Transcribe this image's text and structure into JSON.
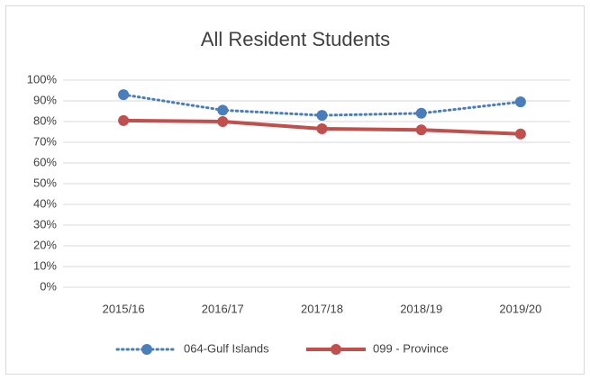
{
  "chart_data": {
    "type": "line",
    "title": "All Resident Students",
    "categories": [
      "2015/16",
      "2016/17",
      "2017/18",
      "2018/19",
      "2019/20"
    ],
    "series": [
      {
        "name": "064-Gulf Islands",
        "color": "#4a7ebb",
        "dash": "dotted",
        "values": [
          93,
          85.5,
          83,
          84,
          89.5
        ]
      },
      {
        "name": "099 - Province",
        "color": "#c0504d",
        "dash": "solid",
        "values": [
          80.5,
          80,
          76.5,
          76,
          74
        ]
      }
    ],
    "ylim": [
      0,
      100
    ],
    "yticks": [
      {
        "value": 0,
        "label": "0%"
      },
      {
        "value": 10,
        "label": "10%"
      },
      {
        "value": 20,
        "label": "20%"
      },
      {
        "value": 30,
        "label": "30%"
      },
      {
        "value": 40,
        "label": "40%"
      },
      {
        "value": 50,
        "label": "50%"
      },
      {
        "value": 60,
        "label": "60%"
      },
      {
        "value": 70,
        "label": "70%"
      },
      {
        "value": 80,
        "label": "80%"
      },
      {
        "value": 90,
        "label": "90%"
      },
      {
        "value": 100,
        "label": "100%"
      }
    ],
    "grid": true,
    "legend": "bottom"
  }
}
